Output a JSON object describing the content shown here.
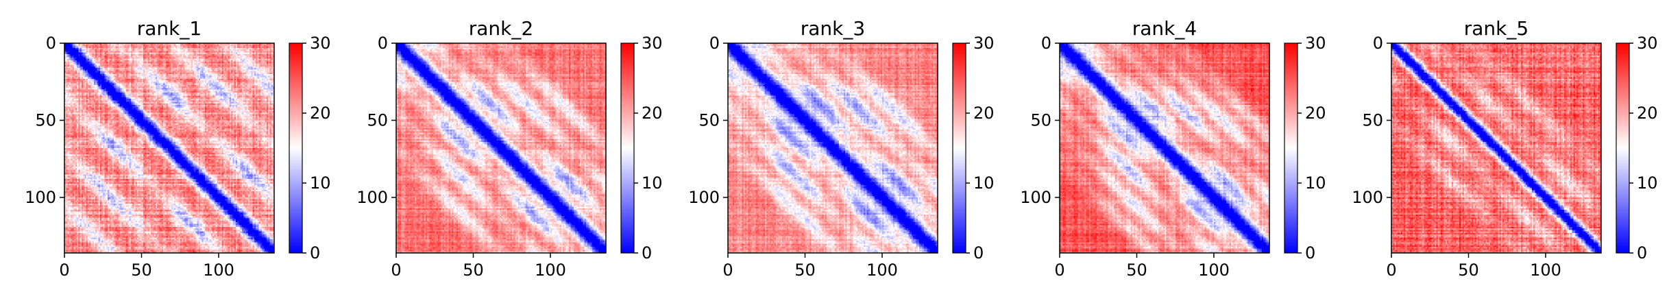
{
  "chart_data": [
    {
      "type": "heatmap",
      "title": "rank_1",
      "matrix_size": 136,
      "x_ticks": [
        0,
        50,
        100
      ],
      "y_ticks": [
        0,
        50,
        100
      ],
      "colorbar": {
        "min": 0,
        "max": 30,
        "ticks": [
          0,
          10,
          20,
          30
        ],
        "colormap": "bwr"
      },
      "pattern": {
        "diag_width": 5,
        "side_bands": [
          {
            "offset": 35,
            "strength": 0.55
          },
          {
            "offset": 70,
            "strength": 0.5
          },
          {
            "offset": 105,
            "strength": 0.4
          }
        ],
        "base": 22,
        "noise": 4
      }
    },
    {
      "type": "heatmap",
      "title": "rank_2",
      "matrix_size": 136,
      "x_ticks": [
        0,
        50,
        100
      ],
      "y_ticks": [
        0,
        50,
        100
      ],
      "colorbar": {
        "min": 0,
        "max": 30,
        "ticks": [
          0,
          10,
          20,
          30
        ],
        "colormap": "bwr"
      },
      "pattern": {
        "diag_width": 6,
        "side_bands": [
          {
            "offset": 22,
            "strength": 0.6
          },
          {
            "offset": 45,
            "strength": 0.45
          },
          {
            "offset": 68,
            "strength": 0.35
          }
        ],
        "base": 23,
        "noise": 3
      }
    },
    {
      "type": "heatmap",
      "title": "rank_3",
      "matrix_size": 136,
      "x_ticks": [
        0,
        50,
        100
      ],
      "y_ticks": [
        0,
        50,
        100
      ],
      "colorbar": {
        "min": 0,
        "max": 30,
        "ticks": [
          0,
          10,
          20,
          30
        ],
        "colormap": "bwr"
      },
      "pattern": {
        "diag_width": 6,
        "side_bands": [
          {
            "offset": 20,
            "strength": 0.65
          },
          {
            "offset": 42,
            "strength": 0.55
          },
          {
            "offset": 64,
            "strength": 0.4
          }
        ],
        "base": 22,
        "noise": 3
      }
    },
    {
      "type": "heatmap",
      "title": "rank_4",
      "matrix_size": 136,
      "x_ticks": [
        0,
        50,
        100
      ],
      "y_ticks": [
        0,
        50,
        100
      ],
      "colorbar": {
        "min": 0,
        "max": 30,
        "ticks": [
          0,
          10,
          20,
          30
        ],
        "colormap": "bwr"
      },
      "pattern": {
        "diag_width": 6,
        "side_bands": [
          {
            "offset": 18,
            "strength": 0.6
          },
          {
            "offset": 37,
            "strength": 0.55
          },
          {
            "offset": 56,
            "strength": 0.45
          },
          {
            "offset": 75,
            "strength": 0.3
          }
        ],
        "base": 25,
        "noise": 3
      }
    },
    {
      "type": "heatmap",
      "title": "rank_5",
      "matrix_size": 136,
      "x_ticks": [
        0,
        50,
        100
      ],
      "y_ticks": [
        0,
        50,
        100
      ],
      "colorbar": {
        "min": 0,
        "max": 30,
        "ticks": [
          0,
          10,
          20,
          30
        ],
        "colormap": "bwr"
      },
      "pattern": {
        "diag_width": 4,
        "side_bands": [
          {
            "offset": 25,
            "strength": 0.3
          },
          {
            "offset": 50,
            "strength": 0.25
          }
        ],
        "base": 24,
        "noise": 4
      }
    }
  ]
}
